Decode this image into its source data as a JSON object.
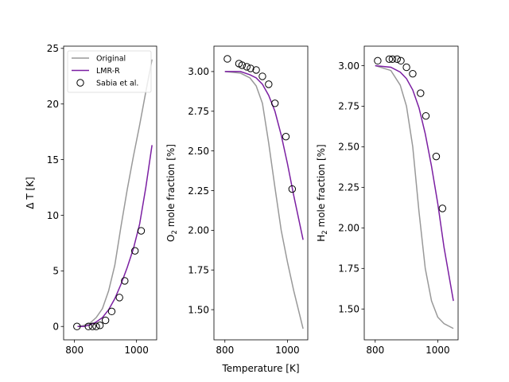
{
  "colors": {
    "original": "#999999",
    "lmr": "#7b1fa2",
    "marker": "#000000"
  },
  "chart_data": [
    {
      "type": "line",
      "ylabel": "Δ T [K]",
      "xlabel": "",
      "xlim": [
        765,
        1065
      ],
      "ylim": [
        -1.2,
        25.2
      ],
      "xticks": [
        800,
        1000
      ],
      "xtick_labels": [
        "800",
        "1000"
      ],
      "yticks": [
        0,
        5,
        10,
        15,
        20,
        25
      ],
      "ytick_labels": [
        "0",
        "5",
        "10",
        "15",
        "20",
        "25"
      ],
      "legend_position": "upper-left",
      "series": [
        {
          "name": "Original",
          "key": "original",
          "style": "line",
          "x": [
            810,
            830,
            850,
            870,
            890,
            910,
            930,
            950,
            970,
            990,
            1010,
            1030,
            1050
          ],
          "y": [
            0,
            0.1,
            0.3,
            0.8,
            1.6,
            3.2,
            5.5,
            9,
            12.3,
            15.3,
            18.1,
            21.1,
            24
          ]
        },
        {
          "name": "LMR-R",
          "key": "lmr",
          "style": "line",
          "x": [
            810,
            830,
            850,
            870,
            890,
            910,
            930,
            950,
            970,
            990,
            1010,
            1030,
            1050
          ],
          "y": [
            0,
            0,
            0.15,
            0.4,
            0.8,
            1.5,
            2.5,
            3.8,
            5.3,
            7,
            9.2,
            12.5,
            16.3
          ]
        },
        {
          "name": "Sabia et al.",
          "key": "marker",
          "style": "marker",
          "x": [
            808,
            845,
            858,
            870,
            882,
            900,
            920,
            945,
            962,
            995,
            1015
          ],
          "y": [
            0,
            0,
            0,
            0,
            0.1,
            0.55,
            1.35,
            2.6,
            4.1,
            6.8,
            8.6
          ]
        }
      ]
    },
    {
      "type": "line",
      "ylabel": "O2 mole fraction [%]",
      "xlabel": "Temperature [K]",
      "xlim": [
        765,
        1065
      ],
      "ylim": [
        1.31,
        3.16
      ],
      "xticks": [
        800,
        1000
      ],
      "xtick_labels": [
        "800",
        "1000"
      ],
      "yticks": [
        1.5,
        1.75,
        2.0,
        2.25,
        2.5,
        2.75,
        3.0
      ],
      "ytick_labels": [
        "1.50",
        "1.75",
        "2.00",
        "2.25",
        "2.50",
        "2.75",
        "3.00"
      ],
      "series": [
        {
          "name": "Original",
          "key": "original",
          "style": "line",
          "x": [
            800,
            850,
            880,
            900,
            920,
            940,
            960,
            980,
            1000,
            1020,
            1050
          ],
          "y": [
            3.0,
            2.99,
            2.96,
            2.91,
            2.8,
            2.55,
            2.27,
            2.0,
            1.8,
            1.62,
            1.38
          ]
        },
        {
          "name": "LMR-R",
          "key": "lmr",
          "style": "line",
          "x": [
            800,
            850,
            880,
            900,
            920,
            940,
            960,
            980,
            1000,
            1020,
            1050
          ],
          "y": [
            3.0,
            3.0,
            2.98,
            2.96,
            2.92,
            2.85,
            2.75,
            2.6,
            2.42,
            2.22,
            1.94
          ]
        },
        {
          "name": "Sabia et al.",
          "key": "marker",
          "style": "marker",
          "x": [
            808,
            845,
            855,
            870,
            882,
            900,
            920,
            940,
            960,
            995,
            1015
          ],
          "y": [
            3.08,
            3.05,
            3.04,
            3.03,
            3.02,
            3.01,
            2.97,
            2.92,
            2.8,
            2.59,
            2.26
          ]
        }
      ]
    },
    {
      "type": "line",
      "ylabel": "H2 mole fraction [%]",
      "xlabel": "",
      "xlim": [
        765,
        1065
      ],
      "ylim": [
        1.31,
        3.12
      ],
      "xticks": [
        800,
        1000
      ],
      "xtick_labels": [
        "800",
        "1000"
      ],
      "yticks": [
        1.5,
        1.75,
        2.0,
        2.25,
        2.5,
        2.75,
        3.0
      ],
      "ytick_labels": [
        "1.50",
        "1.75",
        "2.00",
        "2.25",
        "2.50",
        "2.75",
        "3.00"
      ],
      "series": [
        {
          "name": "Original",
          "key": "original",
          "style": "line",
          "x": [
            800,
            850,
            880,
            900,
            920,
            940,
            960,
            980,
            1000,
            1020,
            1050
          ],
          "y": [
            3.0,
            2.97,
            2.88,
            2.75,
            2.5,
            2.1,
            1.75,
            1.55,
            1.45,
            1.41,
            1.38
          ]
        },
        {
          "name": "LMR-R",
          "key": "lmr",
          "style": "line",
          "x": [
            800,
            850,
            880,
            900,
            920,
            940,
            960,
            980,
            1000,
            1020,
            1050
          ],
          "y": [
            3.0,
            2.99,
            2.96,
            2.92,
            2.85,
            2.74,
            2.58,
            2.38,
            2.15,
            1.88,
            1.55
          ]
        },
        {
          "name": "Sabia et al.",
          "key": "marker",
          "style": "marker",
          "x": [
            808,
            845,
            855,
            870,
            882,
            900,
            920,
            945,
            962,
            995,
            1015
          ],
          "y": [
            3.03,
            3.04,
            3.04,
            3.04,
            3.03,
            2.99,
            2.95,
            2.83,
            2.69,
            2.44,
            2.12
          ]
        }
      ]
    }
  ],
  "legend": {
    "items": [
      {
        "label": "Original",
        "key": "original",
        "style": "line"
      },
      {
        "label": "LMR-R",
        "key": "lmr",
        "style": "line"
      },
      {
        "label": "Sabia et al.",
        "key": "marker",
        "style": "marker"
      }
    ]
  }
}
